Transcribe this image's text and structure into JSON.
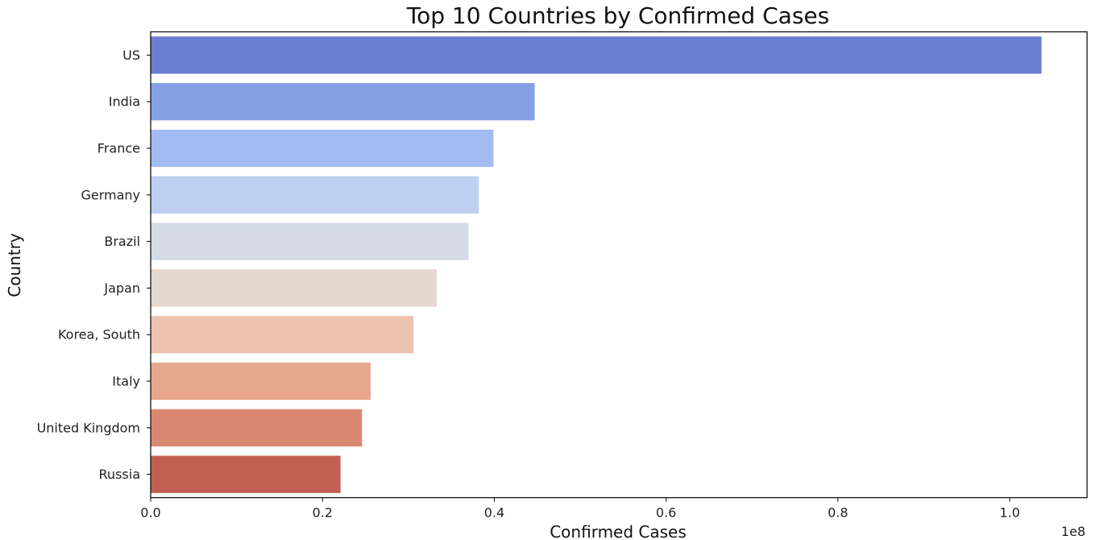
{
  "chart_data": {
    "type": "bar",
    "orientation": "horizontal",
    "title": "Top 10 Countries by Confirmed Cases",
    "xlabel": "Confirmed Cases",
    "ylabel": "Country",
    "x_offset_label": "1e8",
    "xlim": [
      0,
      1.09
    ],
    "grid": false,
    "legend": "none",
    "x_ticks": [
      0.0,
      0.2,
      0.4,
      0.6,
      0.8,
      1.0
    ],
    "x_tick_labels": [
      "0.0",
      "0.2",
      "0.4",
      "0.6",
      "0.8",
      "1.0"
    ],
    "categories": [
      "US",
      "India",
      "France",
      "Germany",
      "Brazil",
      "Japan",
      "Korea, South",
      "Italy",
      "United Kingdom",
      "Russia"
    ],
    "values": [
      1.037,
      0.447,
      0.399,
      0.382,
      0.37,
      0.333,
      0.306,
      0.256,
      0.246,
      0.221
    ],
    "colors": [
      "#6a7fd1",
      "#86a0e6",
      "#a2bbf2",
      "#bdd0f2",
      "#d4dbe7",
      "#e3d7cf",
      "#ecc3b0",
      "#e7a78e",
      "#da8871",
      "#c15f52"
    ]
  }
}
